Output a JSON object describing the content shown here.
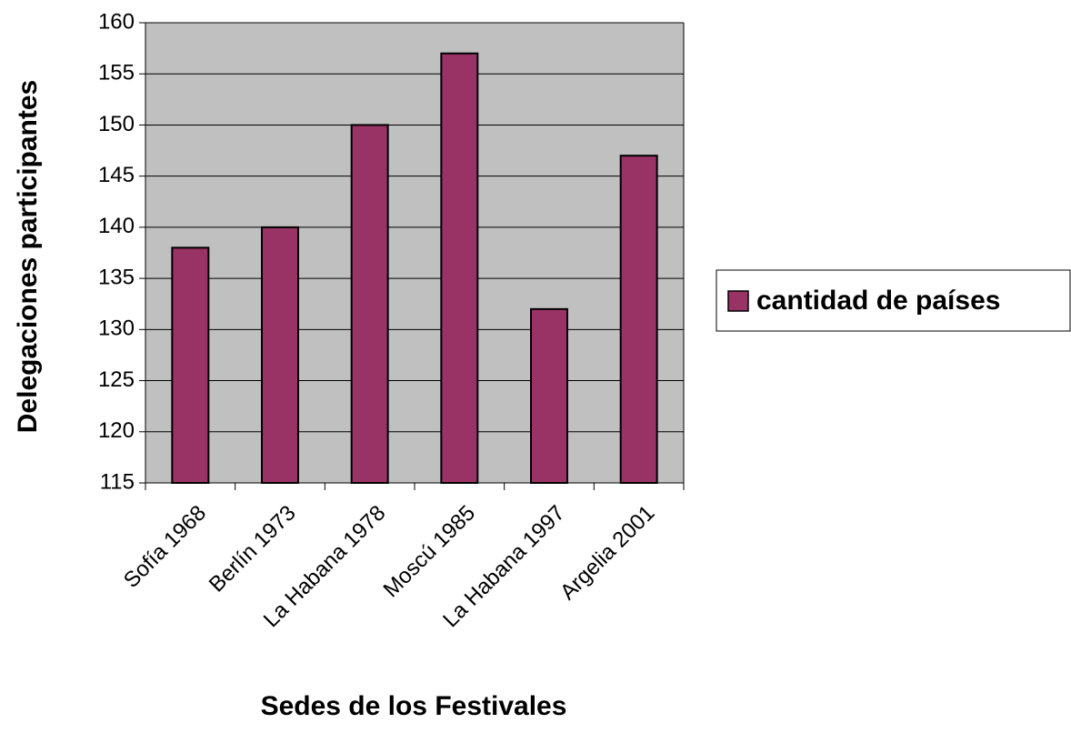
{
  "chart_data": {
    "type": "bar",
    "categories": [
      "Sofía 1968",
      "Berlín 1973",
      "La Habana 1978",
      "Moscú 1985",
      "La Habana 1997",
      "Argelia 2001"
    ],
    "series": [
      {
        "name": "cantidad de países",
        "color": "#993366",
        "values": [
          138,
          140,
          150,
          157,
          132,
          147
        ]
      }
    ],
    "x_label": "Sedes de los Festivales",
    "y_label": "Delegaciones participantes",
    "ylim": [
      115,
      160
    ],
    "yticks": [
      115,
      120,
      125,
      130,
      135,
      140,
      145,
      150,
      155,
      160
    ],
    "grid": true,
    "legend": "right"
  }
}
